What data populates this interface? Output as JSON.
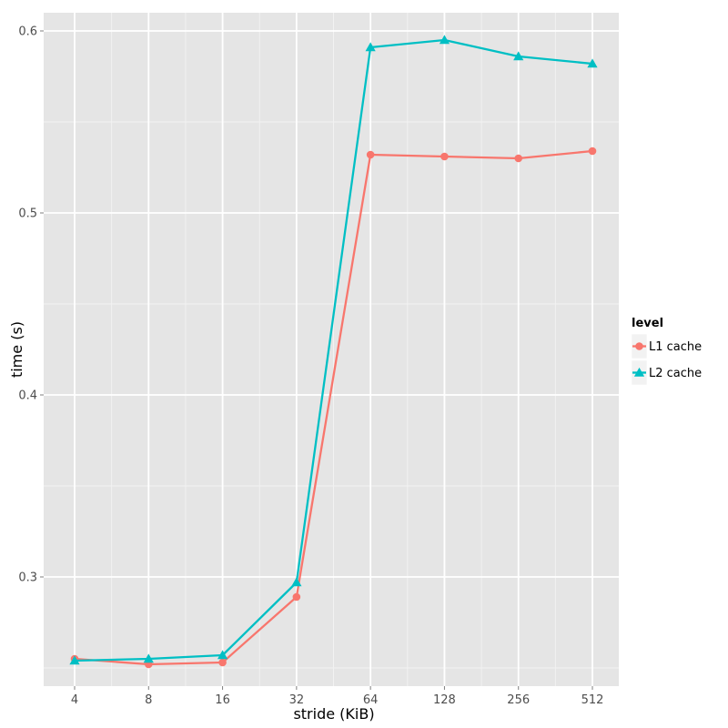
{
  "chart_data": {
    "type": "line",
    "xlabel": "stride (KiB)",
    "ylabel": "time (s)",
    "categories": [
      "4",
      "8",
      "16",
      "32",
      "64",
      "128",
      "256",
      "512"
    ],
    "y_ticks": [
      "0.3",
      "0.4",
      "0.5",
      "0.6"
    ],
    "ylim": [
      0.24,
      0.61
    ],
    "grid": true,
    "legend": {
      "title": "level",
      "position": "right"
    },
    "series": [
      {
        "name": "L1 cache",
        "color": "#F8766D",
        "marker": "circle",
        "values": [
          0.255,
          0.252,
          0.253,
          0.289,
          0.532,
          0.531,
          0.53,
          0.534
        ]
      },
      {
        "name": "L2 cache",
        "color": "#00BFC4",
        "marker": "triangle",
        "values": [
          0.254,
          0.255,
          0.257,
          0.297,
          0.591,
          0.595,
          0.586,
          0.582
        ]
      }
    ]
  }
}
